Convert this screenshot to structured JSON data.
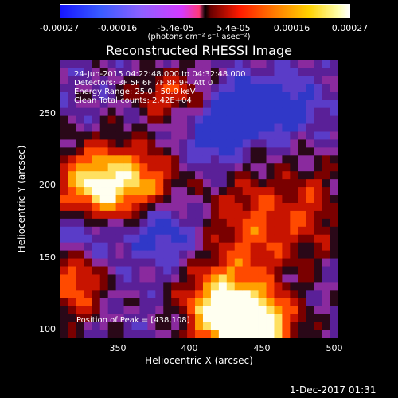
{
  "colorbar": {
    "tick_labels": [
      "-0.00027",
      "-0.00016",
      "-5.4e-05",
      "5.4e-05",
      "0.00016",
      "0.00027"
    ],
    "unit_label": "(photons cm⁻² s⁻¹ asec⁻²)",
    "range": [
      -0.00027,
      0.00027
    ],
    "colors": [
      "#1616ff",
      "#8e60ff",
      "#d43aff",
      "#000000",
      "#ff1a00",
      "#ff7a00",
      "#ffd200",
      "#ffffff"
    ]
  },
  "plot": {
    "title": "Reconstructed RHESSI Image",
    "x_axis_label": "Heliocentric X (arcsec)",
    "y_axis_label": "Heliocentric Y (arcsec)",
    "x_ticks": [
      "350",
      "400",
      "450",
      "500"
    ],
    "y_ticks": [
      "250",
      "200",
      "150",
      "100"
    ],
    "x_range": [
      310,
      500
    ],
    "y_range": [
      100,
      285
    ],
    "info_lines": [
      "24-Jun-2015 04:22:48.000 to 04:32:48.000",
      "Detectors: 3F 5F 6F 7F 8F 9F, Att 0",
      "Energy Range: 25.0 - 50.0 keV",
      "Clean    Total counts: 2.42E+04"
    ],
    "peak_text": "Position of Peak = [438,108]"
  },
  "timestamp": "1-Dec-2017 01:31"
}
